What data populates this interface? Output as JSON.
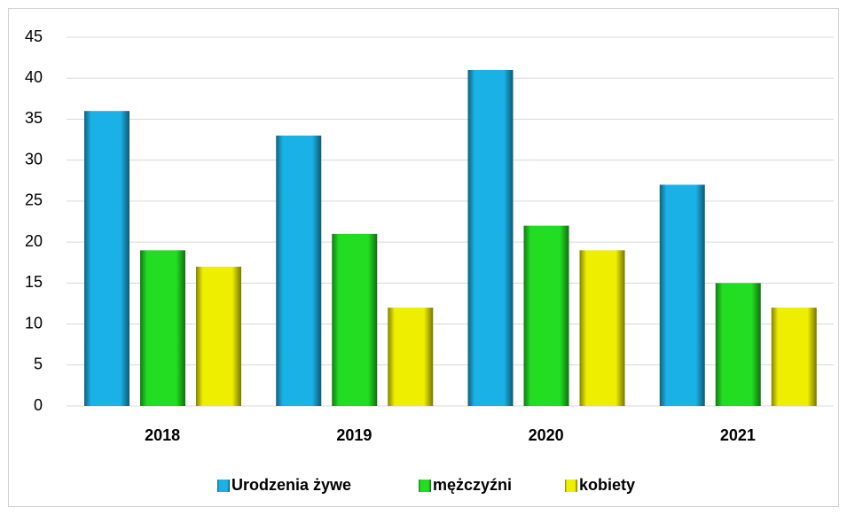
{
  "chart_data": {
    "type": "bar",
    "categories": [
      "2018",
      "2019",
      "2020",
      "2021"
    ],
    "series": [
      {
        "name": "Urodzenia żywe",
        "color": "#1ab2e6",
        "values": [
          36,
          33,
          41,
          27
        ]
      },
      {
        "name": "mężczyźni",
        "color": "#22dd22",
        "values": [
          19,
          21,
          22,
          15
        ]
      },
      {
        "name": "kobiety",
        "color": "#eeee00",
        "values": [
          17,
          12,
          19,
          12
        ]
      }
    ],
    "ylim": [
      0,
      45
    ],
    "yticks": [
      0,
      5,
      10,
      15,
      20,
      25,
      30,
      35,
      40,
      45
    ],
    "grid": true,
    "legend": "bottom"
  }
}
